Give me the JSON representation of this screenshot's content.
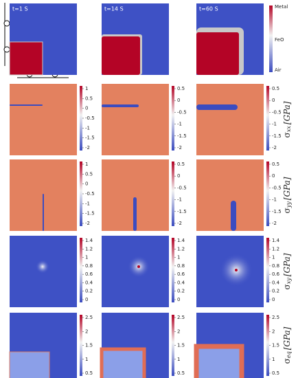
{
  "columns": [
    "t=1 S",
    "t=14 S",
    "t=60 S"
  ],
  "phase_legend": [
    "Metal",
    "FeO",
    "Air"
  ],
  "rows": [
    {
      "label": {
        "symbol": "σ",
        "sub": "xx",
        "unit": "[GPa]"
      },
      "ticks": [
        [
          "1",
          "0.5",
          "0",
          "-0.5",
          "-1",
          "-1.5",
          "-2"
        ],
        [
          "0.5",
          "0",
          "-0.5",
          "-1",
          "-1.5",
          "-2"
        ],
        [
          "0.5",
          "0",
          "-0.5",
          "-1",
          "-1.5",
          "-2"
        ]
      ]
    },
    {
      "label": {
        "symbol": "σ",
        "sub": "yy",
        "unit": "[GPa]"
      },
      "ticks": [
        [
          "1",
          "0.5",
          "0",
          "-0.5",
          "-1",
          "-1.5",
          "-2"
        ],
        [
          "0.5",
          "0",
          "-0.5",
          "-1",
          "-1.5",
          "-2"
        ],
        [
          "0.5",
          "0",
          "-0.5",
          "-1",
          "-1.5",
          "-2"
        ]
      ]
    },
    {
      "label": {
        "symbol": "σ",
        "sub": "xy",
        "unit": "[GPa]"
      },
      "ticks": [
        [
          "1.4",
          "1.2",
          "1",
          "0.8",
          "0.6",
          "0.4",
          "0.2",
          "0"
        ],
        [
          "1.4",
          "1.2",
          "1",
          "0.8",
          "0.6",
          "0.4",
          "0.2",
          "0"
        ],
        [
          "1.4",
          "1.2",
          "1",
          "0.8",
          "0.6",
          "0.4",
          "0.2",
          "0"
        ]
      ]
    },
    {
      "label": {
        "symbol": "σ",
        "sub": "eq",
        "unit": "[GPa]"
      },
      "ticks": [
        [
          "2.5",
          "2",
          "1.5",
          "1",
          "0.5"
        ],
        [
          "2.5",
          "2",
          "1.5",
          "1",
          "0.5"
        ],
        [
          "2.5",
          "2",
          "1.5",
          "1",
          "0.5"
        ]
      ]
    }
  ]
}
